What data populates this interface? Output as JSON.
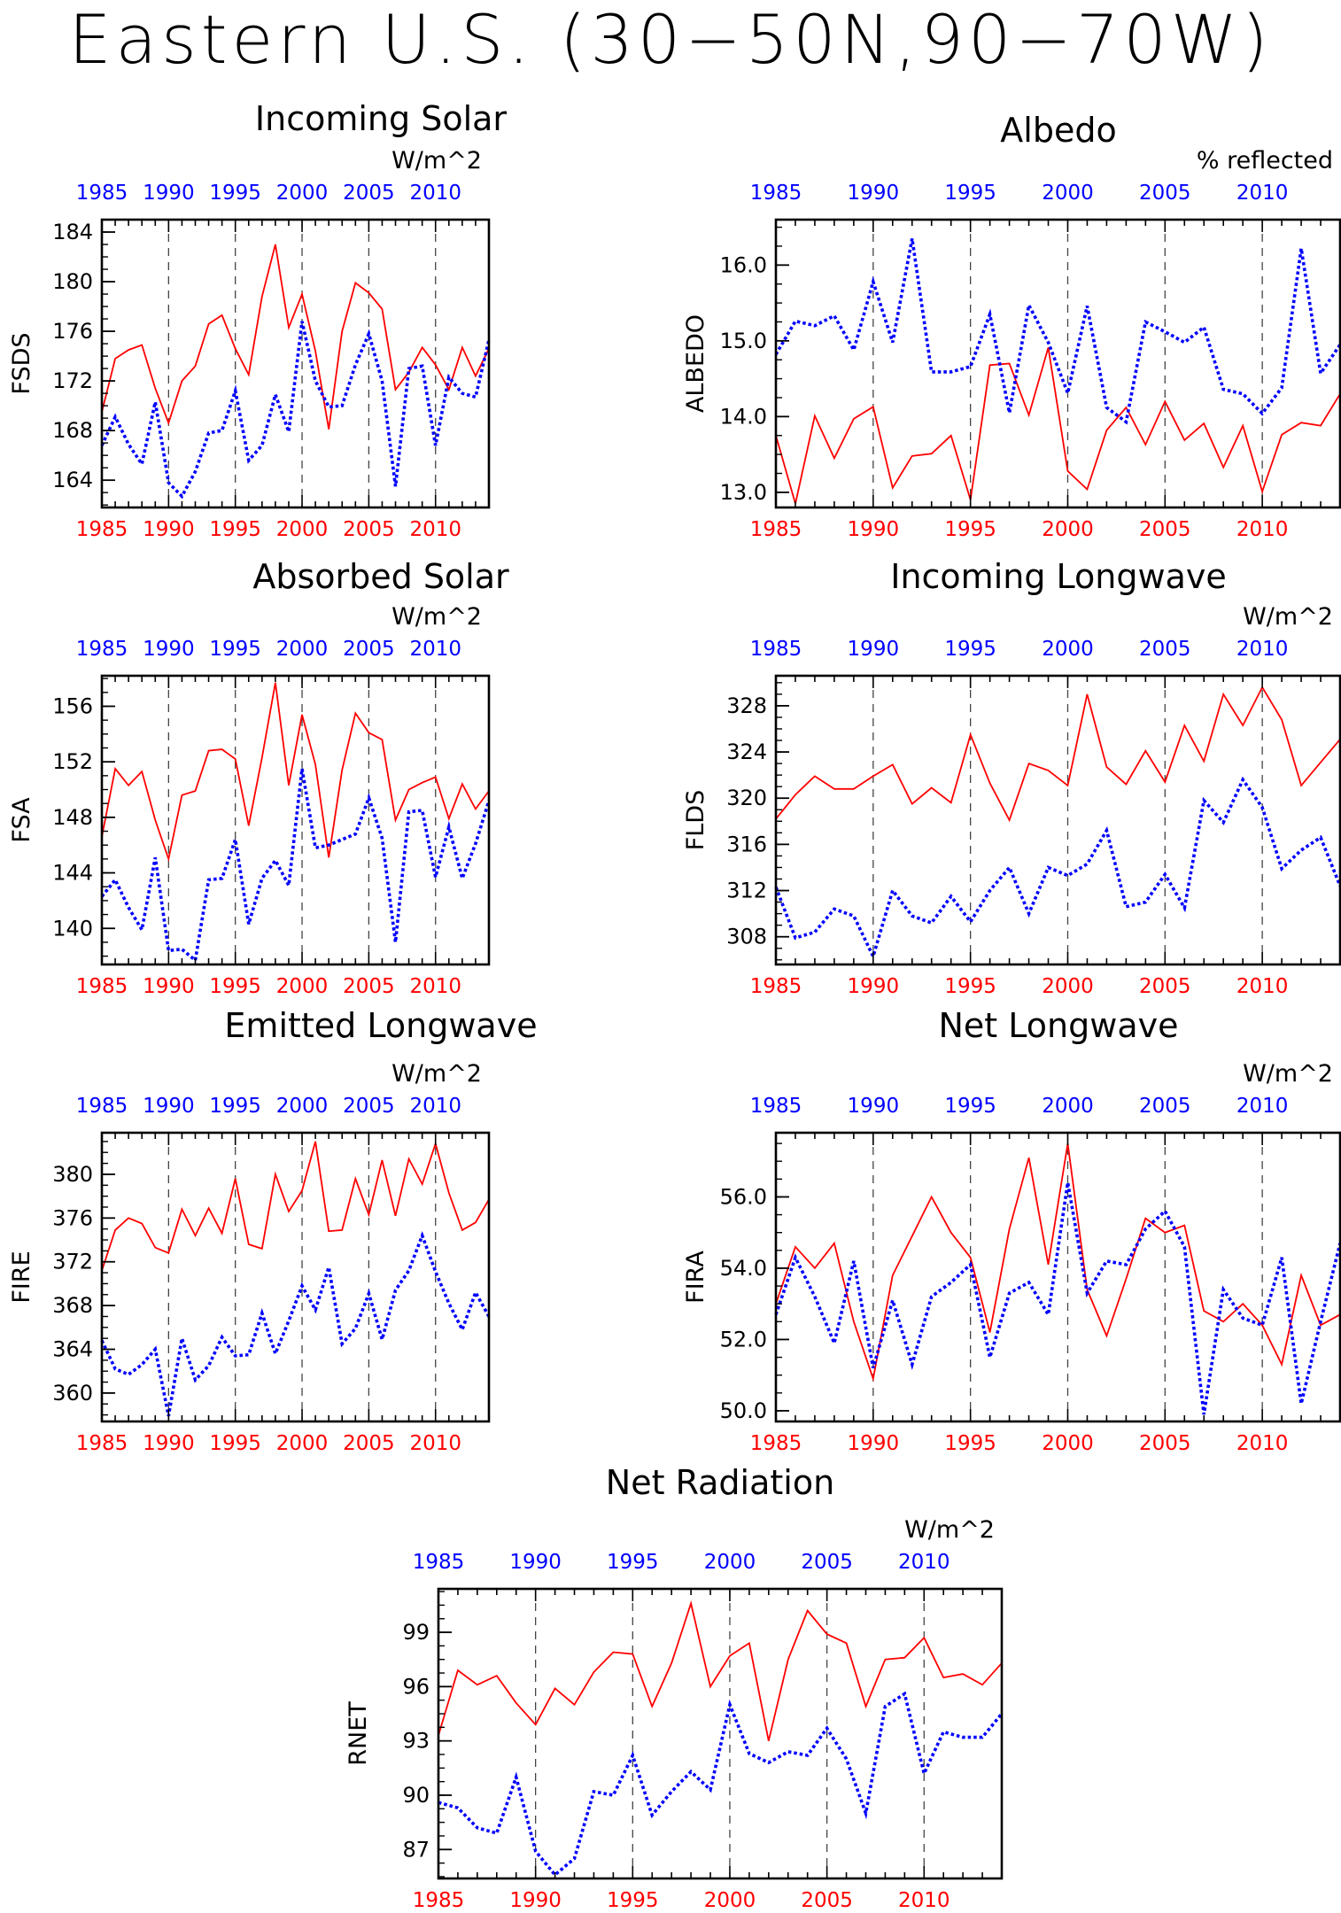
{
  "title": "Eastern U.S. (30−50N,90−70W)",
  "colors": {
    "red_series": "#ff0000",
    "blue_series": "#0000ff",
    "axis": "#000000"
  },
  "chart_data": [
    {
      "type": "line",
      "title": "Incoming Solar",
      "ylabel": "FSDS",
      "units": "W/m^2",
      "xlim": [
        1985,
        2014
      ],
      "ylim": [
        161.8,
        185
      ],
      "yticks": [
        "164",
        "168",
        "172",
        "176",
        "180",
        "184"
      ],
      "xticks": [
        "1985",
        "1990",
        "1995",
        "2000",
        "2005",
        "2010"
      ],
      "series": [
        {
          "color": "red",
          "style": "solid",
          "values": [
            169.5,
            173.8,
            174.5,
            174.9,
            171.4,
            168.6,
            172.0,
            173.2,
            176.6,
            177.3,
            174.6,
            172.5,
            178.8,
            183.0,
            176.3,
            179.0,
            174.4,
            168.1,
            176.0,
            179.9,
            179.1,
            177.8,
            171.3,
            172.7,
            174.7,
            173.3,
            171.3,
            174.7,
            172.4,
            174.6
          ]
        },
        {
          "color": "blue",
          "style": "dotted",
          "values": [
            166.8,
            169.1,
            166.9,
            165.3,
            170.3,
            163.8,
            162.7,
            164.7,
            167.8,
            168.0,
            171.2,
            165.6,
            166.8,
            170.9,
            167.9,
            176.8,
            172.0,
            169.9,
            170.0,
            173.3,
            175.8,
            172.0,
            163.5,
            173.0,
            173.2,
            166.8,
            172.3,
            171.0,
            170.7,
            175.3
          ]
        }
      ]
    },
    {
      "type": "line",
      "title": "Albedo",
      "ylabel": "ALBEDO",
      "units": "% reflected",
      "xlim": [
        1985,
        2014
      ],
      "ylim": [
        12.8,
        16.6
      ],
      "yticks": [
        "13.0",
        "14.0",
        "15.0",
        "16.0"
      ],
      "xticks": [
        "1985",
        "1990",
        "1995",
        "2000",
        "2005",
        "2010"
      ],
      "series": [
        {
          "color": "red",
          "style": "solid",
          "values": [
            13.75,
            12.85,
            14.01,
            13.45,
            13.97,
            14.13,
            13.06,
            13.48,
            13.51,
            13.75,
            12.9,
            14.68,
            14.7,
            14.02,
            14.91,
            13.28,
            13.04,
            13.82,
            14.12,
            13.63,
            14.2,
            13.69,
            13.91,
            13.33,
            13.88,
            13.01,
            13.76,
            13.92,
            13.88,
            14.3
          ]
        },
        {
          "color": "blue",
          "style": "dotted",
          "values": [
            14.82,
            15.26,
            15.2,
            15.33,
            14.88,
            15.78,
            14.98,
            16.35,
            14.59,
            14.59,
            14.66,
            15.35,
            14.05,
            15.47,
            14.98,
            14.31,
            15.46,
            14.12,
            13.93,
            15.25,
            15.12,
            14.98,
            15.18,
            14.36,
            14.3,
            14.04,
            14.38,
            16.22,
            14.57,
            14.95
          ]
        }
      ]
    },
    {
      "type": "line",
      "title": "Absorbed Solar",
      "ylabel": "FSA",
      "units": "W/m^2",
      "xlim": [
        1985,
        2014
      ],
      "ylim": [
        137.4,
        158.2
      ],
      "yticks": [
        "140",
        "144",
        "148",
        "152",
        "156"
      ],
      "xticks": [
        "1985",
        "1990",
        "1995",
        "2000",
        "2005",
        "2010"
      ],
      "series": [
        {
          "color": "red",
          "style": "solid",
          "values": [
            146.6,
            151.5,
            150.3,
            151.3,
            147.8,
            145.0,
            149.6,
            149.9,
            152.8,
            152.9,
            152.2,
            147.4,
            152.3,
            157.7,
            150.3,
            155.4,
            151.8,
            145.1,
            151.4,
            155.5,
            154.1,
            153.6,
            147.8,
            150.0,
            150.5,
            150.9,
            147.9,
            150.4,
            148.6,
            149.9
          ]
        },
        {
          "color": "blue",
          "style": "dotted",
          "values": [
            142.3,
            143.5,
            141.5,
            139.9,
            145.1,
            138.4,
            138.5,
            137.7,
            143.5,
            143.6,
            146.4,
            140.3,
            143.6,
            144.9,
            143.1,
            151.5,
            145.8,
            146.0,
            146.4,
            146.8,
            149.4,
            146.5,
            139.0,
            148.4,
            148.5,
            143.7,
            147.3,
            143.6,
            146.1,
            149.2
          ]
        }
      ]
    },
    {
      "type": "line",
      "title": "Incoming Longwave",
      "ylabel": "FLDS",
      "units": "W/m^2",
      "xlim": [
        1985,
        2014
      ],
      "ylim": [
        305.6,
        330.6
      ],
      "yticks": [
        "308",
        "312",
        "316",
        "320",
        "324",
        "328"
      ],
      "xticks": [
        "1985",
        "1990",
        "1995",
        "2000",
        "2005",
        "2010"
      ],
      "series": [
        {
          "color": "red",
          "style": "solid",
          "values": [
            318.2,
            320.3,
            321.9,
            320.8,
            320.8,
            321.9,
            322.9,
            319.5,
            320.9,
            319.6,
            325.5,
            321.3,
            318.1,
            323.0,
            322.4,
            321.1,
            329.0,
            322.7,
            321.2,
            324.1,
            321.4,
            326.3,
            323.2,
            329.0,
            326.3,
            329.6,
            326.8,
            321.1,
            323.1,
            325.1
          ]
        },
        {
          "color": "blue",
          "style": "dotted",
          "values": [
            312.3,
            307.9,
            308.4,
            310.4,
            309.8,
            306.3,
            312.0,
            309.8,
            309.2,
            311.5,
            309.3,
            312.0,
            314.0,
            310.0,
            314.0,
            313.3,
            314.3,
            317.2,
            310.6,
            311.0,
            313.4,
            310.5,
            319.8,
            317.9,
            321.6,
            319.2,
            313.9,
            315.5,
            316.6,
            312.4
          ]
        }
      ]
    },
    {
      "type": "line",
      "title": "Emitted Longwave",
      "ylabel": "FIRE",
      "units": "W/m^2",
      "xlim": [
        1985,
        2014
      ],
      "ylim": [
        357.4,
        383.8
      ],
      "yticks": [
        "360",
        "364",
        "368",
        "372",
        "376",
        "380"
      ],
      "xticks": [
        "1985",
        "1990",
        "1995",
        "2000",
        "2005",
        "2010"
      ],
      "series": [
        {
          "color": "red",
          "style": "solid",
          "values": [
            371.2,
            374.9,
            376.0,
            375.5,
            373.3,
            372.8,
            376.8,
            374.4,
            376.9,
            374.6,
            379.6,
            373.6,
            373.2,
            380.0,
            376.6,
            378.5,
            383.0,
            374.8,
            374.9,
            379.6,
            376.3,
            381.3,
            376.2,
            381.4,
            379.1,
            382.8,
            378.3,
            374.9,
            375.6,
            377.7
          ]
        },
        {
          "color": "blue",
          "style": "dotted",
          "values": [
            364.8,
            362.2,
            361.7,
            362.6,
            364.0,
            357.9,
            365.0,
            361.2,
            362.5,
            365.1,
            363.4,
            363.5,
            367.3,
            363.6,
            366.6,
            369.8,
            367.6,
            371.5,
            364.5,
            365.9,
            369.1,
            364.9,
            369.4,
            371.2,
            374.4,
            371.1,
            368.2,
            365.8,
            369.2,
            367.0
          ]
        }
      ]
    },
    {
      "type": "line",
      "title": "Net Longwave",
      "ylabel": "FIRA",
      "units": "W/m^2",
      "xlim": [
        1985,
        2014
      ],
      "ylim": [
        49.7,
        57.8
      ],
      "yticks": [
        "50.0",
        "52.0",
        "54.0",
        "56.0"
      ],
      "xticks": [
        "1985",
        "1990",
        "1995",
        "2000",
        "2005",
        "2010"
      ],
      "series": [
        {
          "color": "red",
          "style": "solid",
          "values": [
            53.0,
            54.6,
            54.0,
            54.7,
            52.5,
            50.9,
            53.8,
            54.9,
            56.0,
            55.0,
            54.3,
            52.2,
            55.1,
            57.1,
            54.1,
            57.5,
            53.4,
            52.1,
            53.7,
            55.4,
            55.0,
            55.2,
            52.8,
            52.5,
            53.0,
            52.4,
            51.3,
            53.8,
            52.4,
            52.7
          ]
        },
        {
          "color": "blue",
          "style": "dotted",
          "values": [
            52.7,
            54.3,
            53.2,
            51.9,
            54.2,
            51.2,
            53.1,
            51.3,
            53.2,
            53.6,
            54.1,
            51.5,
            53.3,
            53.6,
            52.7,
            56.4,
            53.3,
            54.2,
            54.1,
            55.1,
            55.6,
            54.6,
            49.9,
            53.4,
            52.6,
            52.4,
            54.3,
            50.2,
            52.5,
            54.7
          ]
        }
      ]
    },
    {
      "type": "line",
      "title": "Net Radiation",
      "ylabel": "RNET",
      "units": "W/m^2",
      "xlim": [
        1985,
        2014
      ],
      "ylim": [
        85.4,
        101.4
      ],
      "yticks": [
        "87",
        "90",
        "93",
        "96",
        "99"
      ],
      "xticks": [
        "1985",
        "1990",
        "1995",
        "2000",
        "2005",
        "2010"
      ],
      "series": [
        {
          "color": "red",
          "style": "solid",
          "values": [
            93.3,
            96.9,
            96.1,
            96.6,
            95.1,
            93.9,
            95.9,
            95.0,
            96.8,
            97.9,
            97.8,
            94.9,
            97.3,
            100.6,
            96.0,
            97.7,
            98.4,
            93.0,
            97.5,
            100.2,
            98.9,
            98.4,
            94.9,
            97.5,
            97.6,
            98.7,
            96.5,
            96.7,
            96.1,
            97.3
          ]
        },
        {
          "color": "blue",
          "style": "dotted",
          "values": [
            89.6,
            89.3,
            88.2,
            87.9,
            91.0,
            86.9,
            85.6,
            86.5,
            90.2,
            90.0,
            92.2,
            88.9,
            90.2,
            91.3,
            90.3,
            95.0,
            92.3,
            91.8,
            92.4,
            92.2,
            93.7,
            92.0,
            89.0,
            94.9,
            95.6,
            91.2,
            93.5,
            93.2,
            93.2,
            94.5
          ]
        }
      ]
    }
  ]
}
